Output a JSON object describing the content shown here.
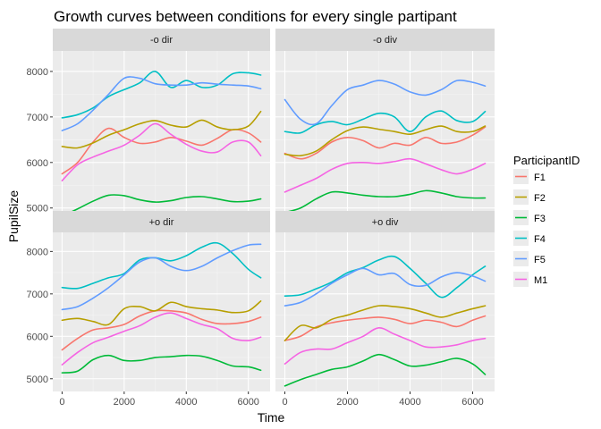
{
  "chart_data": {
    "type": "line",
    "title": "Growth curves between conditions for every single partipant",
    "xlabel": "Time",
    "ylabel": "PupilSize",
    "xlim": [
      -300,
      6700
    ],
    "ylim": [
      4700,
      8450
    ],
    "x_ticks": [
      0,
      2000,
      4000,
      6000
    ],
    "y_ticks": [
      5000,
      6000,
      7000,
      8000
    ],
    "grid": true,
    "facets": [
      "-o dir",
      "-o div",
      "+o dir",
      "+o div"
    ],
    "legend": {
      "title": "ParticipantID",
      "placement": "right",
      "entries": [
        "F1",
        "F2",
        "F3",
        "F4",
        "F5",
        "M1"
      ]
    },
    "colors": {
      "F1": "#F8766D",
      "F2": "#B79F00",
      "F3": "#00BA38",
      "F4": "#00BFC4",
      "F5": "#619CFF",
      "M1": "#F564E3"
    },
    "x": [
      0,
      500,
      1000,
      1500,
      2000,
      2500,
      3000,
      3500,
      4000,
      4500,
      5000,
      5500,
      6000,
      6400
    ],
    "panels": [
      {
        "facet": "-o dir",
        "series": [
          {
            "name": "F1",
            "values": [
              5750,
              6000,
              6450,
              6750,
              6550,
              6420,
              6450,
              6550,
              6470,
              6380,
              6530,
              6720,
              6650,
              6450
            ]
          },
          {
            "name": "F2",
            "values": [
              6350,
              6320,
              6430,
              6600,
              6720,
              6850,
              6920,
              6820,
              6780,
              6930,
              6780,
              6720,
              6800,
              7120
            ]
          },
          {
            "name": "F3",
            "values": [
              4820,
              4980,
              5150,
              5280,
              5270,
              5180,
              5130,
              5160,
              5230,
              5250,
              5200,
              5140,
              5150,
              5200
            ]
          },
          {
            "name": "F4",
            "values": [
              6980,
              7050,
              7200,
              7450,
              7600,
              7750,
              8000,
              7650,
              7800,
              7650,
              7700,
              7950,
              7970,
              7920
            ]
          },
          {
            "name": "F5",
            "values": [
              6700,
              6850,
              7150,
              7500,
              7850,
              7850,
              7730,
              7700,
              7700,
              7750,
              7720,
              7700,
              7680,
              7620
            ]
          },
          {
            "name": "M1",
            "values": [
              5600,
              5950,
              6120,
              6250,
              6380,
              6600,
              6850,
              6620,
              6400,
              6250,
              6230,
              6450,
              6450,
              6150
            ]
          }
        ]
      },
      {
        "facet": "-o div",
        "series": [
          {
            "name": "F1",
            "values": [
              6200,
              6080,
              6200,
              6450,
              6550,
              6480,
              6320,
              6420,
              6380,
              6550,
              6420,
              6450,
              6600,
              6780
            ]
          },
          {
            "name": "F2",
            "values": [
              6180,
              6150,
              6250,
              6500,
              6700,
              6780,
              6730,
              6680,
              6620,
              6720,
              6800,
              6680,
              6680,
              6800
            ]
          },
          {
            "name": "F3",
            "values": [
              4900,
              5000,
              5200,
              5350,
              5330,
              5280,
              5250,
              5250,
              5300,
              5380,
              5330,
              5250,
              5220,
              5220
            ]
          },
          {
            "name": "F4",
            "values": [
              6680,
              6650,
              6830,
              6900,
              6830,
              6950,
              7080,
              7000,
              6680,
              7000,
              7130,
              6920,
              6900,
              7120
            ]
          },
          {
            "name": "F5",
            "values": [
              7380,
              6950,
              6850,
              7250,
              7600,
              7700,
              7800,
              7720,
              7550,
              7480,
              7600,
              7800,
              7760,
              7680
            ]
          },
          {
            "name": "M1",
            "values": [
              5350,
              5500,
              5650,
              5850,
              5980,
              6000,
              5980,
              6020,
              6080,
              5970,
              5840,
              5750,
              5850,
              5980
            ]
          }
        ]
      },
      {
        "facet": "+o dir",
        "series": [
          {
            "name": "F1",
            "values": [
              5680,
              5950,
              6150,
              6200,
              6280,
              6480,
              6600,
              6600,
              6550,
              6400,
              6300,
              6300,
              6350,
              6450
            ]
          },
          {
            "name": "F2",
            "values": [
              6380,
              6420,
              6350,
              6280,
              6650,
              6700,
              6600,
              6800,
              6700,
              6650,
              6620,
              6560,
              6600,
              6830
            ]
          },
          {
            "name": "F3",
            "values": [
              5140,
              5180,
              5450,
              5550,
              5430,
              5430,
              5500,
              5520,
              5550,
              5530,
              5430,
              5300,
              5280,
              5200
            ]
          },
          {
            "name": "F4",
            "values": [
              7150,
              7130,
              7250,
              7380,
              7480,
              7800,
              7850,
              7780,
              7900,
              8100,
              8200,
              7950,
              7580,
              7380
            ]
          },
          {
            "name": "F5",
            "values": [
              6630,
              6700,
              6900,
              7150,
              7450,
              7750,
              7850,
              7650,
              7550,
              7650,
              7850,
              8020,
              8150,
              8170
            ]
          },
          {
            "name": "M1",
            "values": [
              5330,
              5620,
              5850,
              5980,
              6120,
              6250,
              6450,
              6550,
              6420,
              6280,
              6180,
              5950,
              5900,
              5980
            ]
          }
        ]
      },
      {
        "facet": "+o div",
        "series": [
          {
            "name": "F1",
            "values": [
              5900,
              6000,
              6220,
              6320,
              6380,
              6420,
              6450,
              6400,
              6300,
              6380,
              6330,
              6230,
              6380,
              6480
            ]
          },
          {
            "name": "F2",
            "values": [
              5900,
              6250,
              6200,
              6400,
              6500,
              6620,
              6720,
              6700,
              6650,
              6550,
              6450,
              6550,
              6650,
              6720
            ]
          },
          {
            "name": "F3",
            "values": [
              4830,
              4980,
              5100,
              5220,
              5280,
              5420,
              5570,
              5450,
              5300,
              5320,
              5400,
              5480,
              5350,
              5100
            ]
          },
          {
            "name": "F4",
            "values": [
              6950,
              6980,
              7120,
              7280,
              7500,
              7620,
              7800,
              7880,
              7600,
              7250,
              6920,
              7150,
              7450,
              7650
            ]
          },
          {
            "name": "F5",
            "values": [
              6720,
              6800,
              7000,
              7250,
              7450,
              7600,
              7450,
              7480,
              7220,
              7200,
              7400,
              7500,
              7420,
              7300
            ]
          },
          {
            "name": "M1",
            "values": [
              5350,
              5620,
              5700,
              5700,
              5850,
              6000,
              6200,
              6050,
              5900,
              5750,
              5750,
              5800,
              5900,
              5950
            ]
          }
        ]
      }
    ]
  }
}
